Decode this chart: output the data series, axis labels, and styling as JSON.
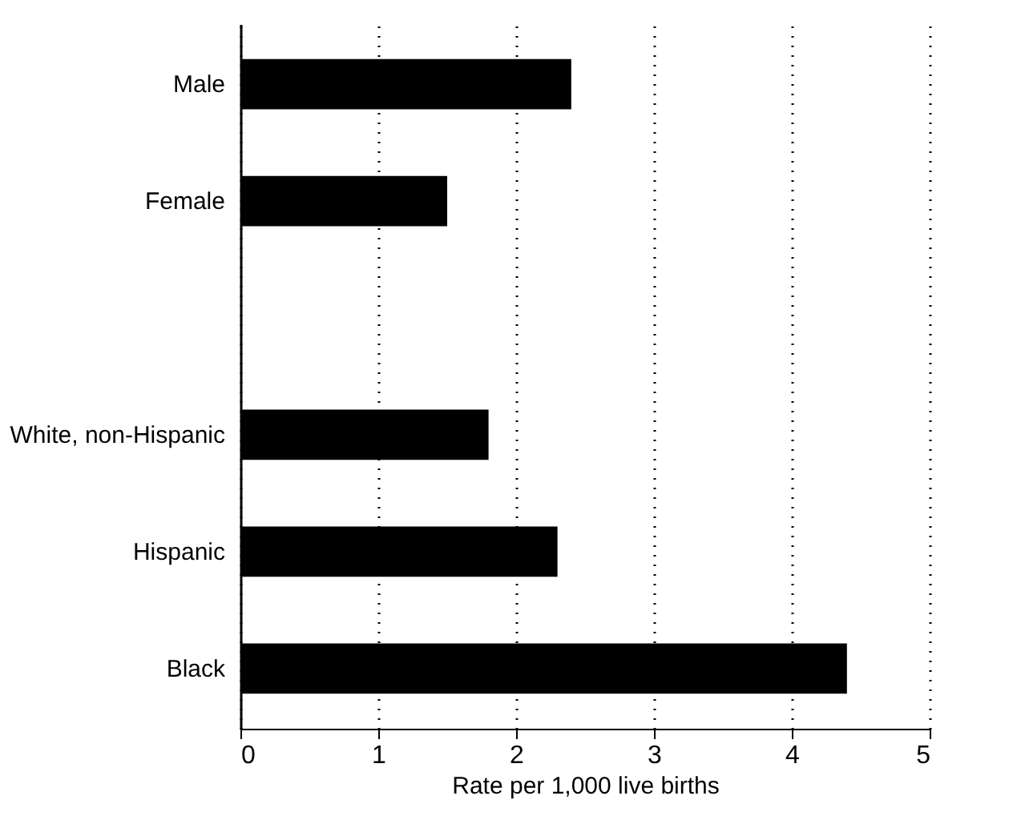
{
  "chart_data": {
    "type": "bar",
    "orientation": "horizontal",
    "xlabel": "Rate per 1,000 live births",
    "categories": [
      "Male",
      "Female",
      null,
      "White, non-Hispanic",
      "Hispanic",
      "Black"
    ],
    "values": [
      2.4,
      1.5,
      null,
      1.8,
      2.3,
      4.4
    ],
    "color": "#000000",
    "xlim": [
      0,
      5
    ],
    "xticks": [
      0,
      1,
      2,
      3,
      4,
      5
    ],
    "grid": "x"
  }
}
